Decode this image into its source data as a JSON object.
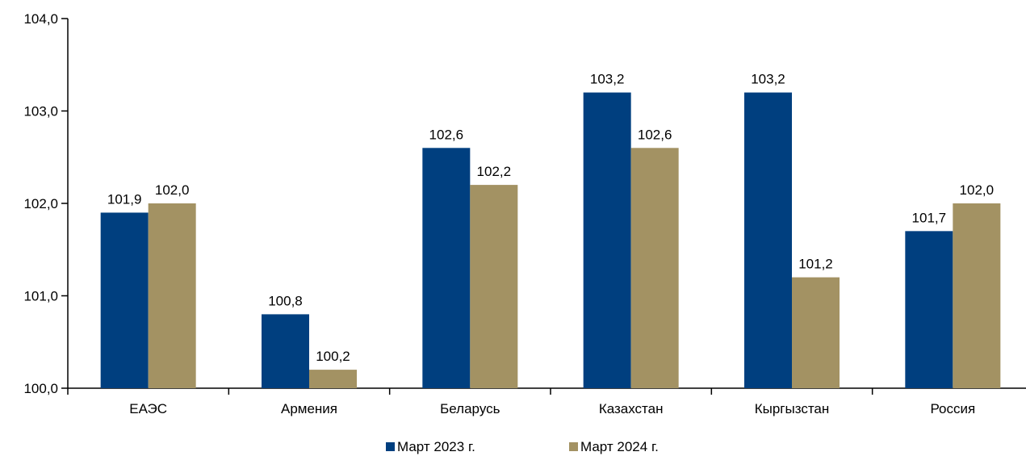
{
  "chart_data": {
    "type": "bar",
    "categories": [
      "ЕАЭС",
      "Армения",
      "Беларусь",
      "Казахстан",
      "Кыргызстан",
      "Россия"
    ],
    "series": [
      {
        "name": "Март 2023 г.",
        "color": "#003F7F",
        "values": [
          101.9,
          100.8,
          102.6,
          103.2,
          103.2,
          101.7
        ],
        "labels": [
          "101,9",
          "100,8",
          "102,6",
          "103,2",
          "103,2",
          "101,7"
        ]
      },
      {
        "name": "Март 2024 г.",
        "color": "#A39263",
        "values": [
          102.0,
          100.2,
          102.2,
          102.6,
          101.2,
          102.0
        ],
        "labels": [
          "102,0",
          "100,2",
          "102,2",
          "102,6",
          "101,2",
          "102,0"
        ]
      }
    ],
    "ylim": [
      100.0,
      104.0
    ],
    "yticks": [
      100.0,
      101.0,
      102.0,
      103.0,
      104.0
    ],
    "ytick_labels": [
      "100,0",
      "101,0",
      "102,0",
      "103,0",
      "104,0"
    ],
    "legend_position": "bottom",
    "grid": false
  }
}
